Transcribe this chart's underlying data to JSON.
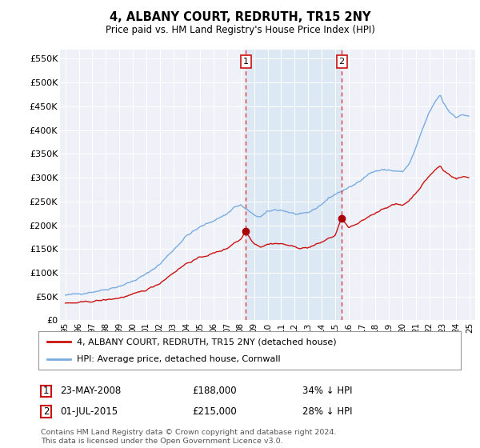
{
  "title": "4, ALBANY COURT, REDRUTH, TR15 2NY",
  "subtitle": "Price paid vs. HM Land Registry's House Price Index (HPI)",
  "ylim": [
    0,
    570000
  ],
  "yticks": [
    0,
    50000,
    100000,
    150000,
    200000,
    250000,
    300000,
    350000,
    400000,
    450000,
    500000,
    550000
  ],
  "ytick_labels": [
    "£0",
    "£50K",
    "£100K",
    "£150K",
    "£200K",
    "£250K",
    "£300K",
    "£350K",
    "£400K",
    "£450K",
    "£500K",
    "£550K"
  ],
  "hpi_color": "#7aabe0",
  "price_color": "#cc1111",
  "marker_color": "#aa0000",
  "vline_color": "#dd2222",
  "shade_color": "#dde8f5",
  "annotation_box_color": "#cc1111",
  "background_color": "#ffffff",
  "plot_bg_color": "#eef2f8",
  "legend_label_price": "4, ALBANY COURT, REDRUTH, TR15 2NY (detached house)",
  "legend_label_hpi": "HPI: Average price, detached house, Cornwall",
  "transaction1_date": "23-MAY-2008",
  "transaction1_price": 188000,
  "transaction1_pct": "34% ↓ HPI",
  "transaction2_date": "01-JUL-2015",
  "transaction2_price": 215000,
  "transaction2_pct": "28% ↓ HPI",
  "footnote": "Contains HM Land Registry data © Crown copyright and database right 2024.\nThis data is licensed under the Open Government Licence v3.0.",
  "transaction1_x": 2008.389,
  "transaction2_x": 2015.5,
  "xlim_left": 1994.6,
  "xlim_right": 2025.4,
  "xtick_years": [
    1995,
    1996,
    1997,
    1998,
    1999,
    2000,
    2001,
    2002,
    2003,
    2004,
    2005,
    2006,
    2007,
    2008,
    2009,
    2010,
    2011,
    2012,
    2013,
    2014,
    2015,
    2016,
    2017,
    2018,
    2019,
    2020,
    2021,
    2022,
    2023,
    2024,
    2025
  ]
}
